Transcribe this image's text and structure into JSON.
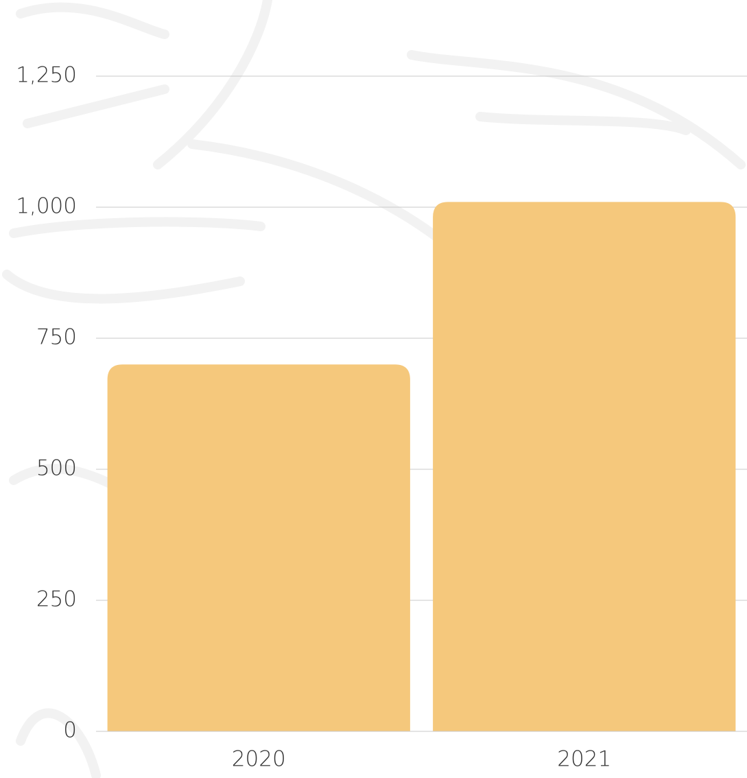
{
  "chart_data": {
    "type": "bar",
    "categories": [
      "2020",
      "2021"
    ],
    "values": [
      700,
      1010
    ],
    "color": "#f5c87c",
    "ylim": [
      0,
      1250
    ],
    "yticks": [
      0,
      250,
      500,
      750,
      {
        "value": 1000,
        "label": "1,000"
      },
      {
        "value": 1250,
        "label": "1,250"
      }
    ],
    "grid": true
  }
}
